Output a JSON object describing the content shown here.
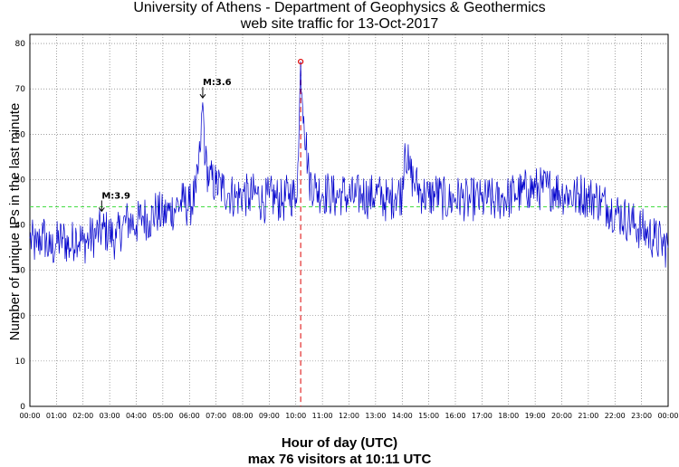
{
  "chart_data": {
    "type": "line",
    "title": "University of Athens - Department of Geophysics & Geothermics",
    "subtitle": "web site traffic for 13-Oct-2017",
    "xlabel": "Hour of day (UTC)",
    "xlabel_sub": "max 76 visitors at 10:11 UTC",
    "ylabel": "Number of unique IPs in the last minute",
    "xlim_hours": [
      0,
      24
    ],
    "ylim": [
      0,
      82
    ],
    "yticks": [
      0,
      10,
      20,
      30,
      40,
      50,
      60,
      70,
      80
    ],
    "xtick_labels": [
      "00:00",
      "01:00",
      "02:00",
      "03:00",
      "04:00",
      "05:00",
      "06:00",
      "07:00",
      "08:00",
      "09:00",
      "10:00",
      "11:00",
      "12:00",
      "13:00",
      "14:00",
      "15:00",
      "16:00",
      "17:00",
      "18:00",
      "19:00",
      "20:00",
      "21:00",
      "22:00",
      "23:00",
      "00:00"
    ],
    "grid": true,
    "series": [
      {
        "color": "#0000cc",
        "x_hours": [
          0,
          0.25,
          0.5,
          0.75,
          1,
          1.25,
          1.5,
          1.75,
          2,
          2.25,
          2.5,
          2.75,
          3,
          3.25,
          3.5,
          3.75,
          4,
          4.25,
          4.5,
          4.75,
          5,
          5.25,
          5.5,
          5.75,
          6,
          6.25,
          6.4,
          6.5,
          6.6,
          6.75,
          7,
          7.25,
          7.5,
          7.75,
          8,
          8.25,
          8.5,
          8.75,
          9,
          9.25,
          9.5,
          9.75,
          10,
          10.1,
          10.183,
          10.3,
          10.5,
          10.75,
          11,
          11.25,
          11.5,
          11.75,
          12,
          12.25,
          12.5,
          12.75,
          13,
          13.25,
          13.5,
          13.75,
          14,
          14.1,
          14.25,
          14.5,
          14.75,
          15,
          15.25,
          15.5,
          15.75,
          16,
          16.25,
          16.5,
          16.75,
          17,
          17.25,
          17.5,
          17.75,
          18,
          18.25,
          18.5,
          18.75,
          19,
          19.25,
          19.5,
          19.75,
          20,
          20.25,
          20.5,
          20.75,
          21,
          21.25,
          21.5,
          21.75,
          22,
          22.25,
          22.5,
          22.75,
          23,
          23.25,
          23.5,
          23.75,
          24
        ],
        "values": [
          37,
          35,
          38,
          34,
          36,
          37,
          35,
          38,
          36,
          37,
          38,
          39,
          38,
          37,
          40,
          41,
          40,
          42,
          41,
          43,
          42,
          43,
          44,
          45,
          44,
          47,
          56,
          67,
          54,
          50,
          49,
          48,
          47,
          46,
          47,
          46,
          47,
          45,
          46,
          46,
          45,
          47,
          46,
          55,
          76,
          64,
          50,
          48,
          47,
          47,
          46,
          47,
          46,
          46,
          47,
          46,
          47,
          46,
          45,
          47,
          47,
          58,
          52,
          49,
          47,
          46,
          47,
          46,
          45,
          46,
          46,
          45,
          46,
          45,
          46,
          45,
          46,
          46,
          47,
          47,
          48,
          48,
          48,
          48,
          48,
          47,
          47,
          46,
          47,
          46,
          46,
          45,
          44,
          43,
          42,
          41,
          40,
          39,
          38,
          37,
          36,
          35
        ]
      }
    ],
    "average_line": {
      "value": 44,
      "color": "#44dd44",
      "style": "dashed"
    },
    "max_marker": {
      "x_hours": 10.183,
      "value": 76,
      "color": "#dd0000",
      "vline_style": "dashed"
    },
    "annotations": [
      {
        "text": "M:3.9",
        "x_hours": 2.7,
        "value": 43
      },
      {
        "text": "M:3.6",
        "x_hours": 6.5,
        "value": 68
      }
    ]
  }
}
